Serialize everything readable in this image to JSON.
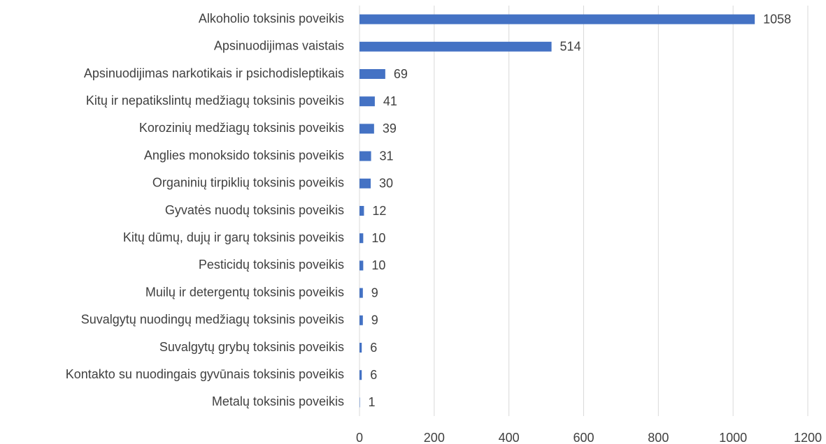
{
  "chart_data": {
    "type": "bar",
    "orientation": "horizontal",
    "categories": [
      "Alkoholio toksinis poveikis",
      "Apsinuodijimas vaistais",
      "Apsinuodijimas narkotikais ir psichodisleptikais",
      "Kitų ir nepatikslintų medžiagų toksinis poveikis",
      "Korozinių medžiagų toksinis poveikis",
      "Anglies monoksido toksinis poveikis",
      "Organinių tirpiklių toksinis poveikis",
      "Gyvatės nuodų toksinis poveikis",
      "Kitų dūmų, dujų ir garų toksinis poveikis",
      "Pesticidų toksinis poveikis",
      "Muilų ir detergentų toksinis poveikis",
      "Suvalgytų nuodingų medžiagų toksinis poveikis",
      "Suvalgytų grybų toksinis poveikis",
      "Kontakto su nuodingais gyvūnais toksinis poveikis",
      "Metalų toksinis poveikis"
    ],
    "values": [
      1058,
      514,
      69,
      41,
      39,
      31,
      30,
      12,
      10,
      10,
      9,
      9,
      6,
      6,
      1
    ],
    "color": "#4472c4",
    "xlim": [
      0,
      1200
    ],
    "xticks": [
      0,
      200,
      400,
      600,
      800,
      1000,
      1200
    ],
    "grid": true
  }
}
